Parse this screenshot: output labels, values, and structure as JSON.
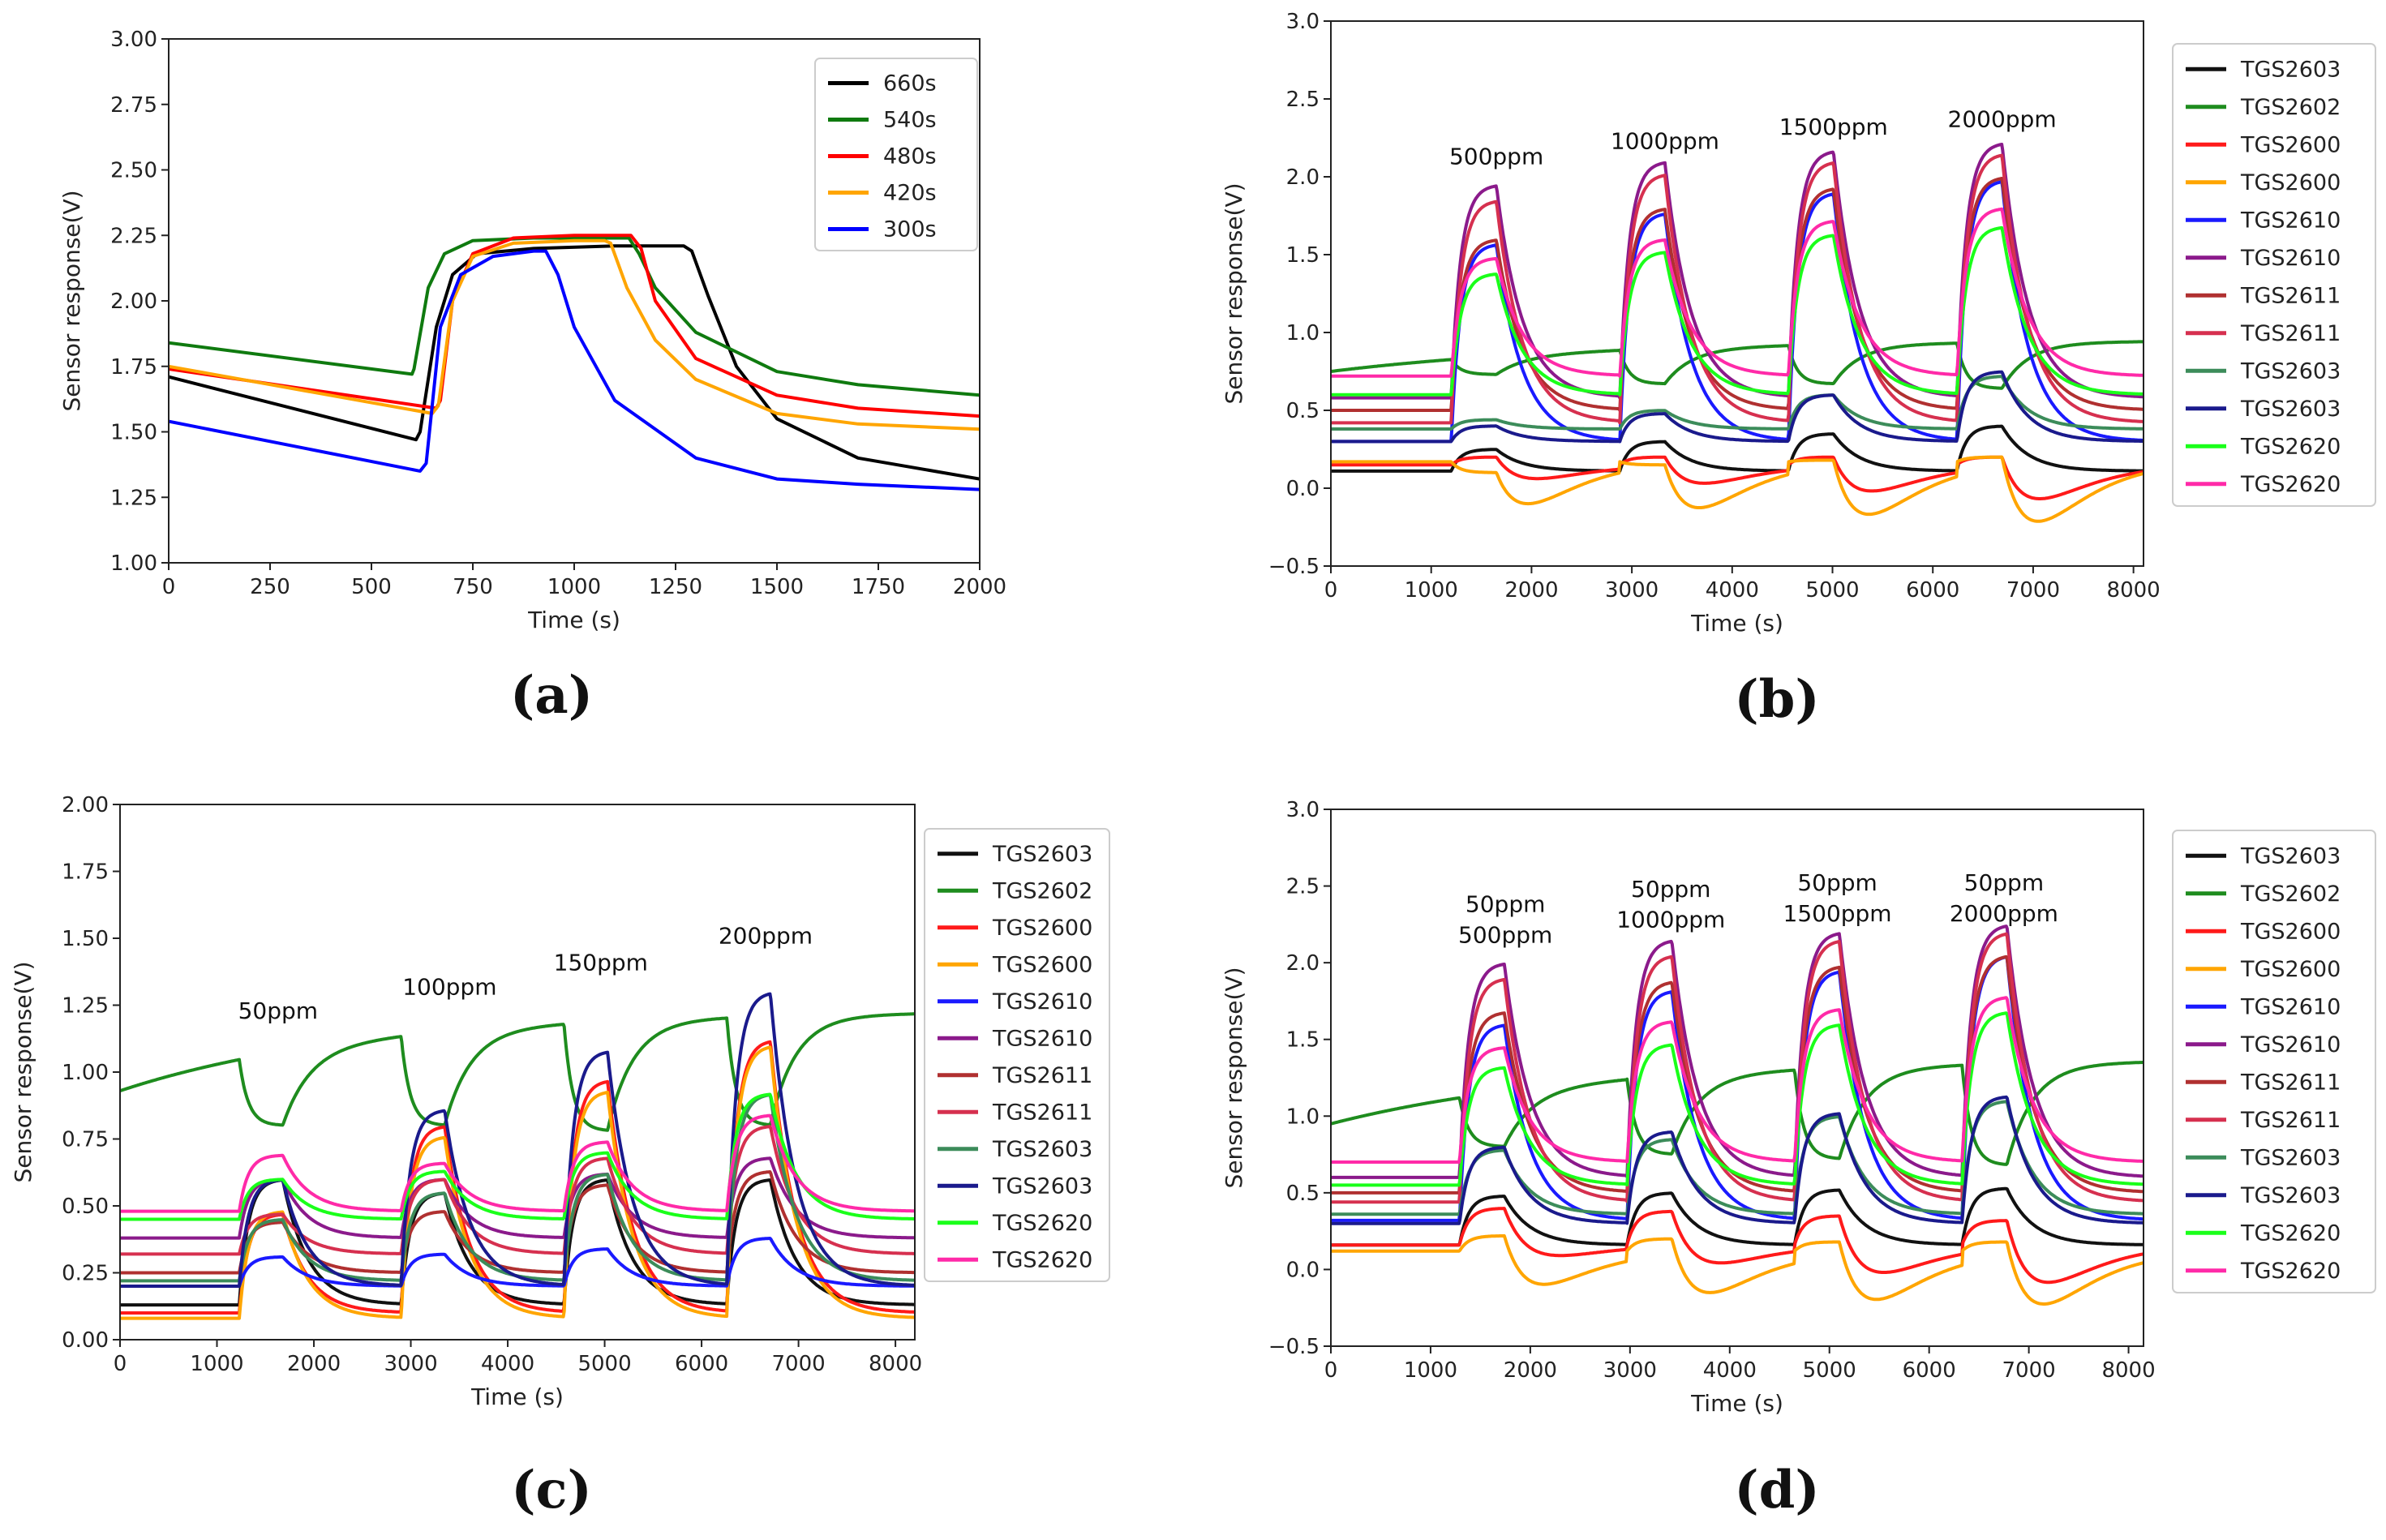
{
  "chart_data": [
    {
      "id": "a",
      "type": "line",
      "caption": "(a)",
      "xlabel": "Time (s)",
      "ylabel": "Sensor response(V)",
      "xlim": [
        0,
        2000
      ],
      "ylim": [
        1.0,
        3.0
      ],
      "xticks": [
        "0",
        "250",
        "500",
        "750",
        "1000",
        "1250",
        "1500",
        "1750",
        "2000"
      ],
      "yticks": [
        "1.00",
        "1.25",
        "1.50",
        "1.75",
        "2.00",
        "2.25",
        "2.50",
        "2.75",
        "3.00"
      ],
      "legend_position": "top-right",
      "series": [
        {
          "name": "660s",
          "color": "#000000",
          "x": [
            0,
            610,
            620,
            660,
            700,
            760,
            900,
            1100,
            1270,
            1290,
            1330,
            1400,
            1500,
            1700,
            2000
          ],
          "y": [
            1.71,
            1.47,
            1.5,
            1.9,
            2.1,
            2.18,
            2.2,
            2.21,
            2.21,
            2.19,
            2.02,
            1.75,
            1.55,
            1.4,
            1.32
          ]
        },
        {
          "name": "540s",
          "color": "#0f7a0f",
          "x": [
            0,
            600,
            605,
            640,
            680,
            750,
            900,
            1100,
            1135,
            1160,
            1200,
            1300,
            1500,
            1700,
            2000
          ],
          "y": [
            1.84,
            1.72,
            1.74,
            2.05,
            2.18,
            2.23,
            2.24,
            2.24,
            2.24,
            2.18,
            2.05,
            1.88,
            1.73,
            1.68,
            1.64
          ]
        },
        {
          "name": "480s",
          "color": "#ff0000",
          "x": [
            0,
            660,
            670,
            700,
            750,
            850,
            1000,
            1100,
            1140,
            1165,
            1200,
            1300,
            1500,
            1700,
            2000
          ],
          "y": [
            1.74,
            1.59,
            1.62,
            2.0,
            2.18,
            2.24,
            2.25,
            2.25,
            2.25,
            2.2,
            2.0,
            1.78,
            1.64,
            1.59,
            1.56
          ]
        },
        {
          "name": "420s",
          "color": "#ffa500",
          "x": [
            0,
            650,
            665,
            700,
            750,
            850,
            1000,
            1075,
            1090,
            1130,
            1200,
            1300,
            1500,
            1700,
            2000
          ],
          "y": [
            1.75,
            1.57,
            1.6,
            2.0,
            2.17,
            2.22,
            2.23,
            2.23,
            2.22,
            2.05,
            1.85,
            1.7,
            1.57,
            1.53,
            1.51
          ]
        },
        {
          "name": "300s",
          "color": "#0000ff",
          "x": [
            0,
            620,
            635,
            670,
            720,
            800,
            900,
            930,
            960,
            1000,
            1100,
            1300,
            1500,
            1700,
            2000
          ],
          "y": [
            1.54,
            1.35,
            1.38,
            1.9,
            2.1,
            2.17,
            2.19,
            2.19,
            2.1,
            1.9,
            1.62,
            1.4,
            1.32,
            1.3,
            1.28
          ]
        }
      ]
    },
    {
      "id": "b",
      "type": "line",
      "caption": "(b)",
      "xlabel": "Time (s)",
      "ylabel": "Sensor response(V)",
      "xlim": [
        0,
        8100
      ],
      "ylim": [
        -0.5,
        3.0
      ],
      "xticks": [
        "0",
        "1000",
        "2000",
        "3000",
        "4000",
        "5000",
        "6000",
        "7000",
        "8000"
      ],
      "yticks": [
        "−0.5",
        "0.0",
        "0.5",
        "1.0",
        "1.5",
        "2.0",
        "2.5",
        "3.0"
      ],
      "legend_position": "outside-right",
      "pulses": [
        {
          "on": 1200,
          "off": 1650,
          "conc": "500ppm"
        },
        {
          "on": 2880,
          "off": 3330,
          "conc": "1000ppm"
        },
        {
          "on": 4560,
          "off": 5010,
          "conc": "1500ppm"
        },
        {
          "on": 6240,
          "off": 6690,
          "conc": "2000ppm"
        }
      ],
      "annotations": [
        {
          "text": "500ppm",
          "x": 1650,
          "y": 2.08
        },
        {
          "text": "1000ppm",
          "x": 3330,
          "y": 2.18
        },
        {
          "text": "1500ppm",
          "x": 5010,
          "y": 2.27
        },
        {
          "text": "2000ppm",
          "x": 6690,
          "y": 2.32
        }
      ],
      "series": [
        {
          "name": "TGS2603",
          "color": "#111111",
          "base": 0.11,
          "peaks": [
            0.25,
            0.3,
            0.35,
            0.4
          ],
          "mode": "up",
          "drift": 0.0
        },
        {
          "name": "TGS2602",
          "color": "#1e8c1e",
          "base": 0.75,
          "peaks": [
            0.73,
            0.67,
            0.67,
            0.64
          ],
          "mode": "dip",
          "drift": 0.2
        },
        {
          "name": "TGS2600",
          "color": "#ff1a1a",
          "base": 0.15,
          "peaks": [
            0.2,
            0.2,
            0.2,
            0.2
          ],
          "mode": "undershoot",
          "under": [
            0.05,
            0.02,
            -0.03,
            -0.08
          ]
        },
        {
          "name": "TGS2600",
          "color": "#ffa500",
          "base": 0.17,
          "peaks": [
            0.1,
            0.15,
            0.18,
            0.2
          ],
          "mode": "undershoot",
          "under": [
            -0.08,
            -0.12,
            -0.17,
            -0.22
          ]
        },
        {
          "name": "TGS2610",
          "color": "#1a1aff",
          "base": 0.3,
          "peaks": [
            1.57,
            1.77,
            1.9,
            1.98
          ],
          "mode": "up"
        },
        {
          "name": "TGS2610",
          "color": "#8b1a8b",
          "base": 0.58,
          "peaks": [
            1.95,
            2.1,
            2.17,
            2.22
          ],
          "mode": "up"
        },
        {
          "name": "TGS2611",
          "color": "#b03030",
          "base": 0.5,
          "peaks": [
            1.6,
            1.8,
            1.93,
            2.0
          ],
          "mode": "up"
        },
        {
          "name": "TGS2611",
          "color": "#d6304f",
          "base": 0.42,
          "peaks": [
            1.85,
            2.02,
            2.1,
            2.15
          ],
          "mode": "up"
        },
        {
          "name": "TGS2603",
          "color": "#3c8c5a",
          "base": 0.38,
          "peaks": [
            0.44,
            0.5,
            0.6,
            0.72
          ],
          "mode": "up"
        },
        {
          "name": "TGS2603",
          "color": "#1a1a8c",
          "base": 0.3,
          "peaks": [
            0.4,
            0.48,
            0.6,
            0.75
          ],
          "mode": "up"
        },
        {
          "name": "TGS2620",
          "color": "#1aff1a",
          "base": 0.6,
          "peaks": [
            1.38,
            1.52,
            1.63,
            1.68
          ],
          "mode": "up"
        },
        {
          "name": "TGS2620",
          "color": "#ff2aa8",
          "base": 0.72,
          "peaks": [
            1.48,
            1.6,
            1.72,
            1.8
          ],
          "mode": "up"
        }
      ]
    },
    {
      "id": "c",
      "type": "line",
      "caption": "(c)",
      "xlabel": "Time (s)",
      "ylabel": "Sensor response(V)",
      "xlim": [
        0,
        8200
      ],
      "ylim": [
        0.0,
        2.0
      ],
      "xticks": [
        "0",
        "1000",
        "2000",
        "3000",
        "4000",
        "5000",
        "6000",
        "7000",
        "8000"
      ],
      "yticks": [
        "0.00",
        "0.25",
        "0.50",
        "0.75",
        "1.00",
        "1.25",
        "1.50",
        "1.75",
        "2.00"
      ],
      "legend_position": "outside-right",
      "pulses": [
        {
          "on": 1230,
          "off": 1680,
          "conc": "50ppm"
        },
        {
          "on": 2900,
          "off": 3350,
          "conc": "100ppm"
        },
        {
          "on": 4580,
          "off": 5030,
          "conc": "150ppm"
        },
        {
          "on": 6260,
          "off": 6710,
          "conc": "200ppm"
        }
      ],
      "annotations": [
        {
          "text": "50ppm",
          "x": 1630,
          "y": 1.2
        },
        {
          "text": "100ppm",
          "x": 3400,
          "y": 1.29
        },
        {
          "text": "150ppm",
          "x": 4960,
          "y": 1.38
        },
        {
          "text": "200ppm",
          "x": 6660,
          "y": 1.48
        }
      ],
      "series": [
        {
          "name": "TGS2603",
          "color": "#111111",
          "base": 0.13,
          "peaks": [
            0.6,
            0.55,
            0.6,
            0.6
          ],
          "mode": "up"
        },
        {
          "name": "TGS2602",
          "color": "#1e8c1e",
          "base": 0.93,
          "peaks": [
            0.8,
            0.8,
            0.78,
            0.8
          ],
          "mode": "dip",
          "drift": 0.3
        },
        {
          "name": "TGS2600",
          "color": "#ff1a1a",
          "base": 0.1,
          "peaks": [
            0.47,
            0.8,
            0.97,
            1.12
          ],
          "mode": "up"
        },
        {
          "name": "TGS2600",
          "color": "#ffa500",
          "base": 0.08,
          "peaks": [
            0.48,
            0.76,
            0.93,
            1.1
          ],
          "mode": "up"
        },
        {
          "name": "TGS2610",
          "color": "#1a1aff",
          "base": 0.2,
          "peaks": [
            0.31,
            0.32,
            0.34,
            0.38
          ],
          "mode": "up"
        },
        {
          "name": "TGS2610",
          "color": "#8b1a8b",
          "base": 0.38,
          "peaks": [
            0.6,
            0.6,
            0.62,
            0.68
          ],
          "mode": "up"
        },
        {
          "name": "TGS2611",
          "color": "#b03030",
          "base": 0.25,
          "peaks": [
            0.44,
            0.48,
            0.58,
            0.63
          ],
          "mode": "up"
        },
        {
          "name": "TGS2611",
          "color": "#d6304f",
          "base": 0.32,
          "peaks": [
            0.47,
            0.6,
            0.68,
            0.8
          ],
          "mode": "up"
        },
        {
          "name": "TGS2603",
          "color": "#3c8c5a",
          "base": 0.22,
          "peaks": [
            0.45,
            0.55,
            0.62,
            0.92
          ],
          "mode": "up"
        },
        {
          "name": "TGS2603",
          "color": "#1a1a8c",
          "base": 0.2,
          "peaks": [
            0.6,
            0.86,
            1.08,
            1.3
          ],
          "mode": "up"
        },
        {
          "name": "TGS2620",
          "color": "#1aff1a",
          "base": 0.45,
          "peaks": [
            0.6,
            0.63,
            0.7,
            0.92
          ],
          "mode": "up"
        },
        {
          "name": "TGS2620",
          "color": "#ff2aa8",
          "base": 0.48,
          "peaks": [
            0.69,
            0.66,
            0.74,
            0.84
          ],
          "mode": "up"
        }
      ]
    },
    {
      "id": "d",
      "type": "line",
      "caption": "(d)",
      "xlabel": "Time (s)",
      "ylabel": "Sensor response(V)",
      "xlim": [
        0,
        8150
      ],
      "ylim": [
        -0.5,
        3.0
      ],
      "xticks": [
        "0",
        "1000",
        "2000",
        "3000",
        "4000",
        "5000",
        "6000",
        "7000",
        "8000"
      ],
      "yticks": [
        "−0.5",
        "0.0",
        "0.5",
        "1.0",
        "1.5",
        "2.0",
        "2.5",
        "3.0"
      ],
      "legend_position": "outside-right",
      "pulses": [
        {
          "on": 1290,
          "off": 1740,
          "conc": "50ppm 500ppm"
        },
        {
          "on": 2970,
          "off": 3420,
          "conc": "50ppm 1000ppm"
        },
        {
          "on": 4650,
          "off": 5100,
          "conc": "50ppm 1500ppm"
        },
        {
          "on": 6330,
          "off": 6780,
          "conc": "50ppm 2000ppm"
        }
      ],
      "annotations": [
        {
          "text": "50ppm",
          "x": 1750,
          "y": 2.33
        },
        {
          "text": "500ppm",
          "x": 1750,
          "y": 2.13
        },
        {
          "text": "50ppm",
          "x": 3410,
          "y": 2.43
        },
        {
          "text": "1000ppm",
          "x": 3410,
          "y": 2.23
        },
        {
          "text": "50ppm",
          "x": 5080,
          "y": 2.47
        },
        {
          "text": "1500ppm",
          "x": 5080,
          "y": 2.27
        },
        {
          "text": "50ppm",
          "x": 6750,
          "y": 2.47
        },
        {
          "text": "2000ppm",
          "x": 6750,
          "y": 2.27
        }
      ],
      "series": [
        {
          "name": "TGS2603",
          "color": "#111111",
          "base": 0.16,
          "peaks": [
            0.48,
            0.5,
            0.52,
            0.53
          ],
          "mode": "up"
        },
        {
          "name": "TGS2602",
          "color": "#1e8c1e",
          "base": 0.95,
          "peaks": [
            0.8,
            0.75,
            0.72,
            0.68
          ],
          "mode": "dip",
          "drift": 0.42
        },
        {
          "name": "TGS2600",
          "color": "#ff1a1a",
          "base": 0.16,
          "peaks": [
            0.4,
            0.38,
            0.35,
            0.32
          ],
          "mode": "undershoot",
          "under": [
            0.05,
            0.0,
            -0.06,
            -0.12
          ]
        },
        {
          "name": "TGS2600",
          "color": "#ffa500",
          "base": 0.12,
          "peaks": [
            0.22,
            0.2,
            0.18,
            0.18
          ],
          "mode": "undershoot",
          "under": [
            -0.12,
            -0.17,
            -0.21,
            -0.24
          ]
        },
        {
          "name": "TGS2610",
          "color": "#1a1aff",
          "base": 0.32,
          "peaks": [
            1.6,
            1.82,
            1.95,
            2.05
          ],
          "mode": "up"
        },
        {
          "name": "TGS2610",
          "color": "#8b1a8b",
          "base": 0.6,
          "peaks": [
            2.0,
            2.15,
            2.2,
            2.25
          ],
          "mode": "up"
        },
        {
          "name": "TGS2611",
          "color": "#b03030",
          "base": 0.5,
          "peaks": [
            1.68,
            1.88,
            1.98,
            2.05
          ],
          "mode": "up"
        },
        {
          "name": "TGS2611",
          "color": "#d6304f",
          "base": 0.44,
          "peaks": [
            1.9,
            2.05,
            2.15,
            2.2
          ],
          "mode": "up"
        },
        {
          "name": "TGS2603",
          "color": "#3c8c5a",
          "base": 0.36,
          "peaks": [
            0.78,
            0.85,
            1.0,
            1.1
          ],
          "mode": "up"
        },
        {
          "name": "TGS2603",
          "color": "#1a1a8c",
          "base": 0.3,
          "peaks": [
            0.8,
            0.9,
            1.02,
            1.13
          ],
          "mode": "up"
        },
        {
          "name": "TGS2620",
          "color": "#1aff1a",
          "base": 0.55,
          "peaks": [
            1.32,
            1.47,
            1.6,
            1.68
          ],
          "mode": "up"
        },
        {
          "name": "TGS2620",
          "color": "#ff2aa8",
          "base": 0.7,
          "peaks": [
            1.45,
            1.62,
            1.7,
            1.78
          ],
          "mode": "up"
        }
      ]
    }
  ]
}
